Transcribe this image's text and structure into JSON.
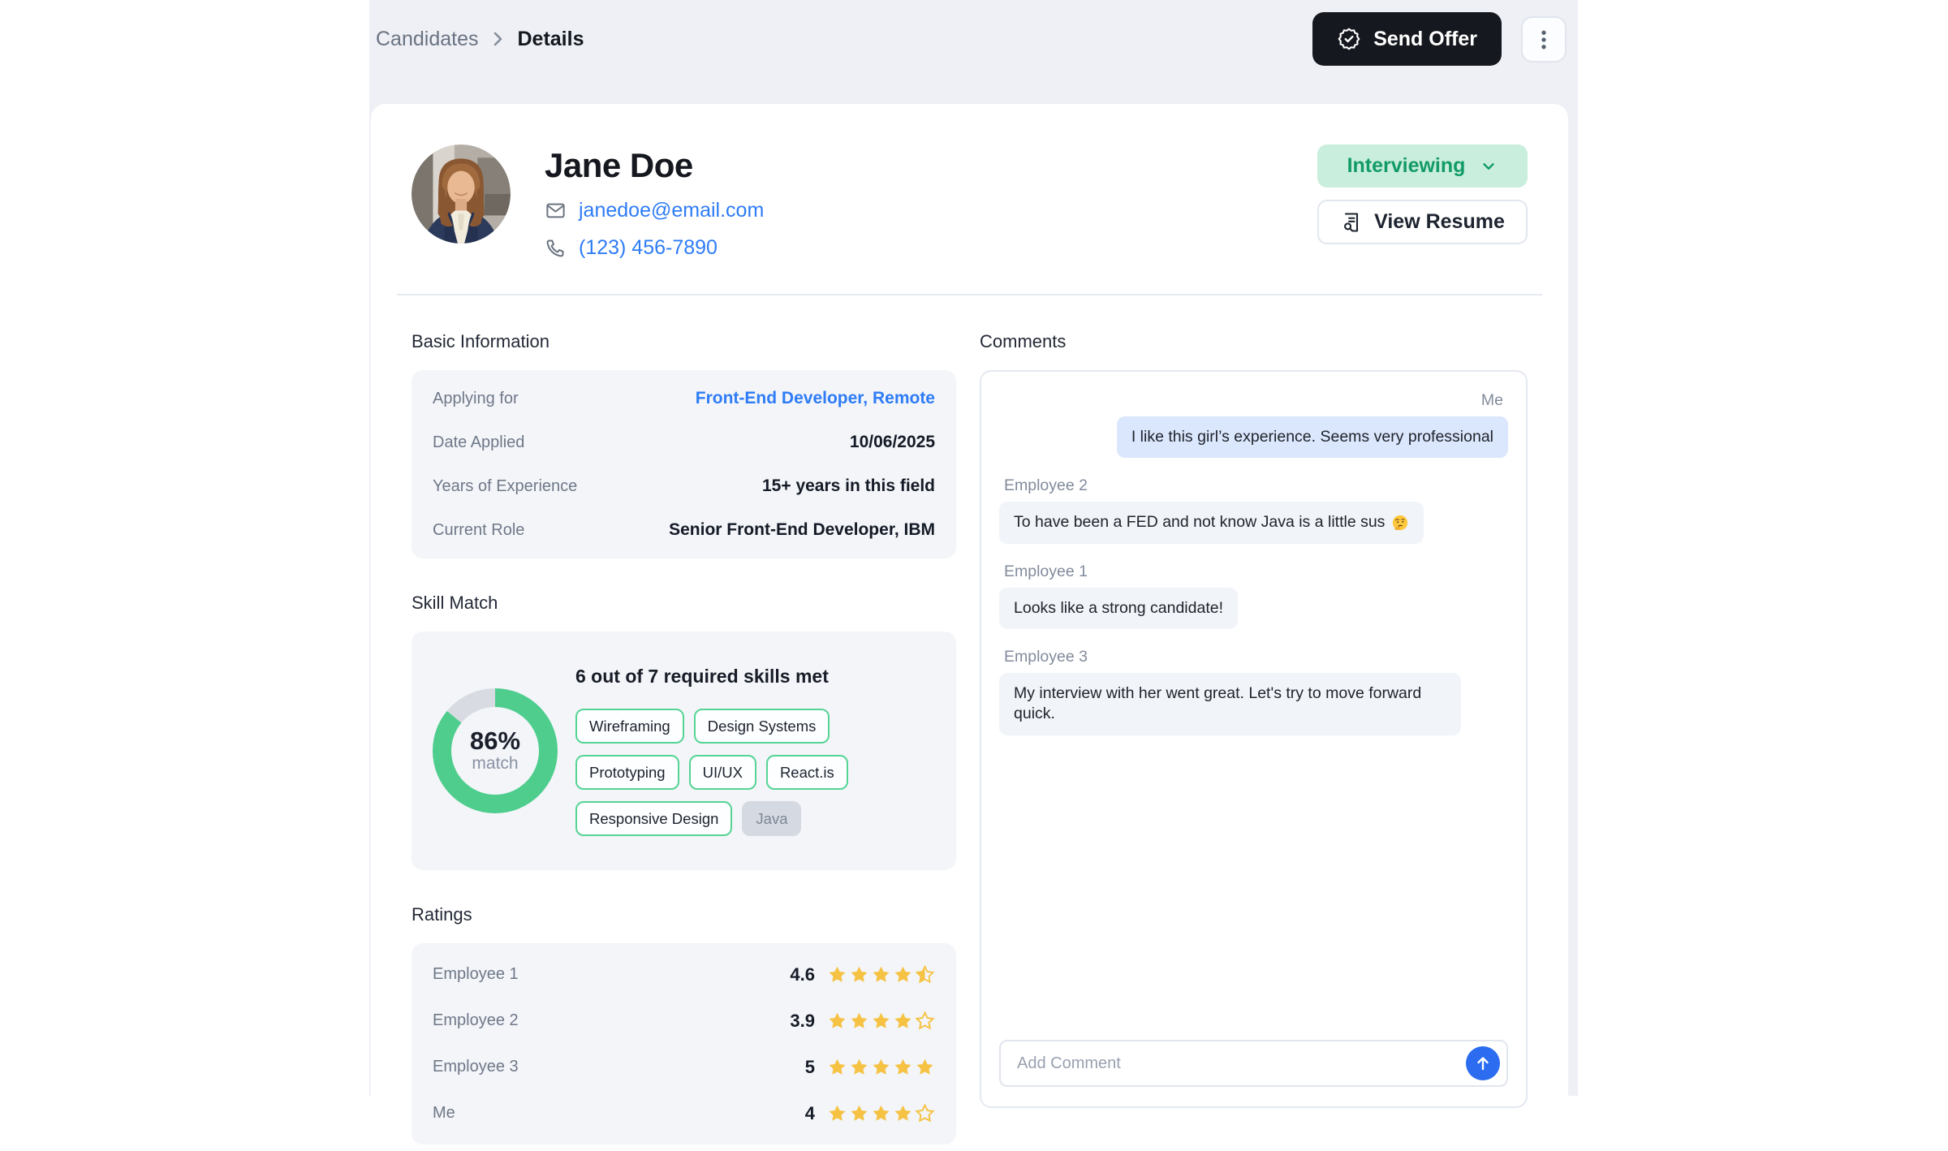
{
  "colors": {
    "column_bg": "#eef0f5",
    "accent_blue": "#2e7cf6",
    "status_green_bg": "#c9eedd",
    "status_green_text": "#129b66",
    "donut_green": "#4ecd8d",
    "donut_track": "#d8dbe1",
    "star_yellow": "#f6c243",
    "me_bubble": "#dbe7fd",
    "other_bubble": "#f1f4f9",
    "send_button_blue": "#2b6cf0",
    "send_offer_black": "#15181e"
  },
  "icons": {
    "breadcrumb_sep": "chevron-right",
    "send_offer": "badge-check",
    "menu": "kebab-vertical",
    "email": "envelope",
    "phone": "phone",
    "status_chevron": "chevron-down",
    "resume": "file-search",
    "send": "arrow-up",
    "emoji_name": "thinking-face"
  },
  "topbar": {
    "breadcrumb_parent": "Candidates",
    "breadcrumb_current": "Details",
    "send_offer_label": "Send Offer"
  },
  "profile": {
    "name": "Jane Doe",
    "email": "janedoe@email.com",
    "phone": "(123) 456-7890",
    "status_label": "Interviewing",
    "view_resume_label": "View Resume"
  },
  "basic_info": {
    "heading": "Basic Information",
    "rows": [
      {
        "label": "Applying for",
        "value": "Front-End Developer, Remote",
        "link": true
      },
      {
        "label": "Date Applied",
        "value": "10/06/2025",
        "link": false
      },
      {
        "label": "Years of Experience",
        "value": "15+ years in this field",
        "link": false
      },
      {
        "label": "Current Role",
        "value": "Senior Front-End Developer, IBM",
        "link": false
      }
    ]
  },
  "skill_match": {
    "heading": "Skill Match",
    "summary": "6 out of 7 required skills met",
    "match_percent": 86,
    "match_percent_label": "86%",
    "match_label": "match",
    "skills": [
      {
        "label": "Wireframing",
        "matched": true
      },
      {
        "label": "Design Systems",
        "matched": true
      },
      {
        "label": "Prototyping",
        "matched": true
      },
      {
        "label": "UI/UX",
        "matched": true
      },
      {
        "label": "React.is",
        "matched": true
      },
      {
        "label": "Responsive Design",
        "matched": true
      },
      {
        "label": "Java",
        "matched": false
      }
    ]
  },
  "ratings": {
    "heading": "Ratings",
    "rows": [
      {
        "label": "Employee 1",
        "value": "4.6",
        "stars": {
          "full": 4,
          "half": 1,
          "empty": 0
        }
      },
      {
        "label": "Employee 2",
        "value": "3.9",
        "stars": {
          "full": 4,
          "half": 0,
          "empty": 1
        }
      },
      {
        "label": "Employee 3",
        "value": "5",
        "stars": {
          "full": 5,
          "half": 0,
          "empty": 0
        }
      },
      {
        "label": "Me",
        "value": "4",
        "stars": {
          "full": 4,
          "half": 0,
          "empty": 1
        }
      }
    ]
  },
  "comments": {
    "heading": "Comments",
    "messages": [
      {
        "author": "Me",
        "side": "right",
        "text": "I like this girl’s experience. Seems very professional"
      },
      {
        "author": "Employee 2",
        "side": "left",
        "text": "To have been a FED and not know Java is a little sus",
        "emoji": "🤔"
      },
      {
        "author": "Employee 1",
        "side": "left",
        "text": "Looks like a strong candidate!"
      },
      {
        "author": "Employee 3",
        "side": "left",
        "text": "My interview with her went great. Let's try to move forward quick."
      }
    ],
    "input_placeholder": "Add Comment"
  }
}
